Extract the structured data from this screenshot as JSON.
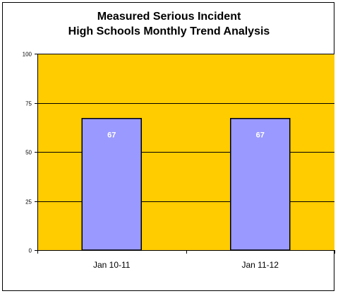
{
  "chart_data": {
    "type": "bar",
    "title": [
      "Measured Serious Incident",
      "High Schools Monthly Trend Analysis"
    ],
    "categories": [
      "Jan 10-11",
      "Jan 11-12"
    ],
    "values": [
      67,
      67
    ],
    "data_labels": [
      "67",
      "67"
    ],
    "ylim": [
      0,
      100
    ],
    "yticks": [
      0,
      25,
      50,
      75,
      100
    ],
    "ytick_labels": [
      "0",
      "25",
      "50",
      "75",
      "100"
    ],
    "xlabel": "",
    "ylabel": "",
    "grid": true,
    "legend": "none",
    "colors": {
      "plot_background": "#FFCC00",
      "bar_fill": "#9999FF",
      "bar_stroke": "#000000",
      "data_label": "#FFFFFF",
      "gridline": "#000000"
    }
  }
}
